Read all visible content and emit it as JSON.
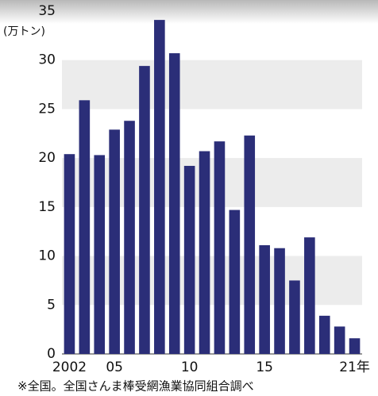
{
  "chart_data": {
    "type": "bar",
    "y_axis_label": "(万トン)",
    "categories": [
      "2002",
      null,
      null,
      "05",
      null,
      null,
      null,
      null,
      "10",
      null,
      null,
      null,
      null,
      "15",
      null,
      null,
      null,
      null,
      null,
      "21年"
    ],
    "values": [
      20.4,
      25.9,
      20.3,
      22.9,
      23.8,
      29.4,
      34.1,
      30.7,
      19.2,
      20.7,
      21.7,
      14.7,
      22.3,
      11.1,
      10.8,
      7.5,
      11.9,
      3.9,
      2.8,
      1.6
    ],
    "color": "#2b2e78",
    "ylim": [
      0,
      35
    ],
    "yticks": [
      0,
      5,
      10,
      15,
      20,
      25,
      30,
      35
    ],
    "grid": true,
    "note": "※全国。全国さんま棒受網漁業協同組合調べ"
  }
}
